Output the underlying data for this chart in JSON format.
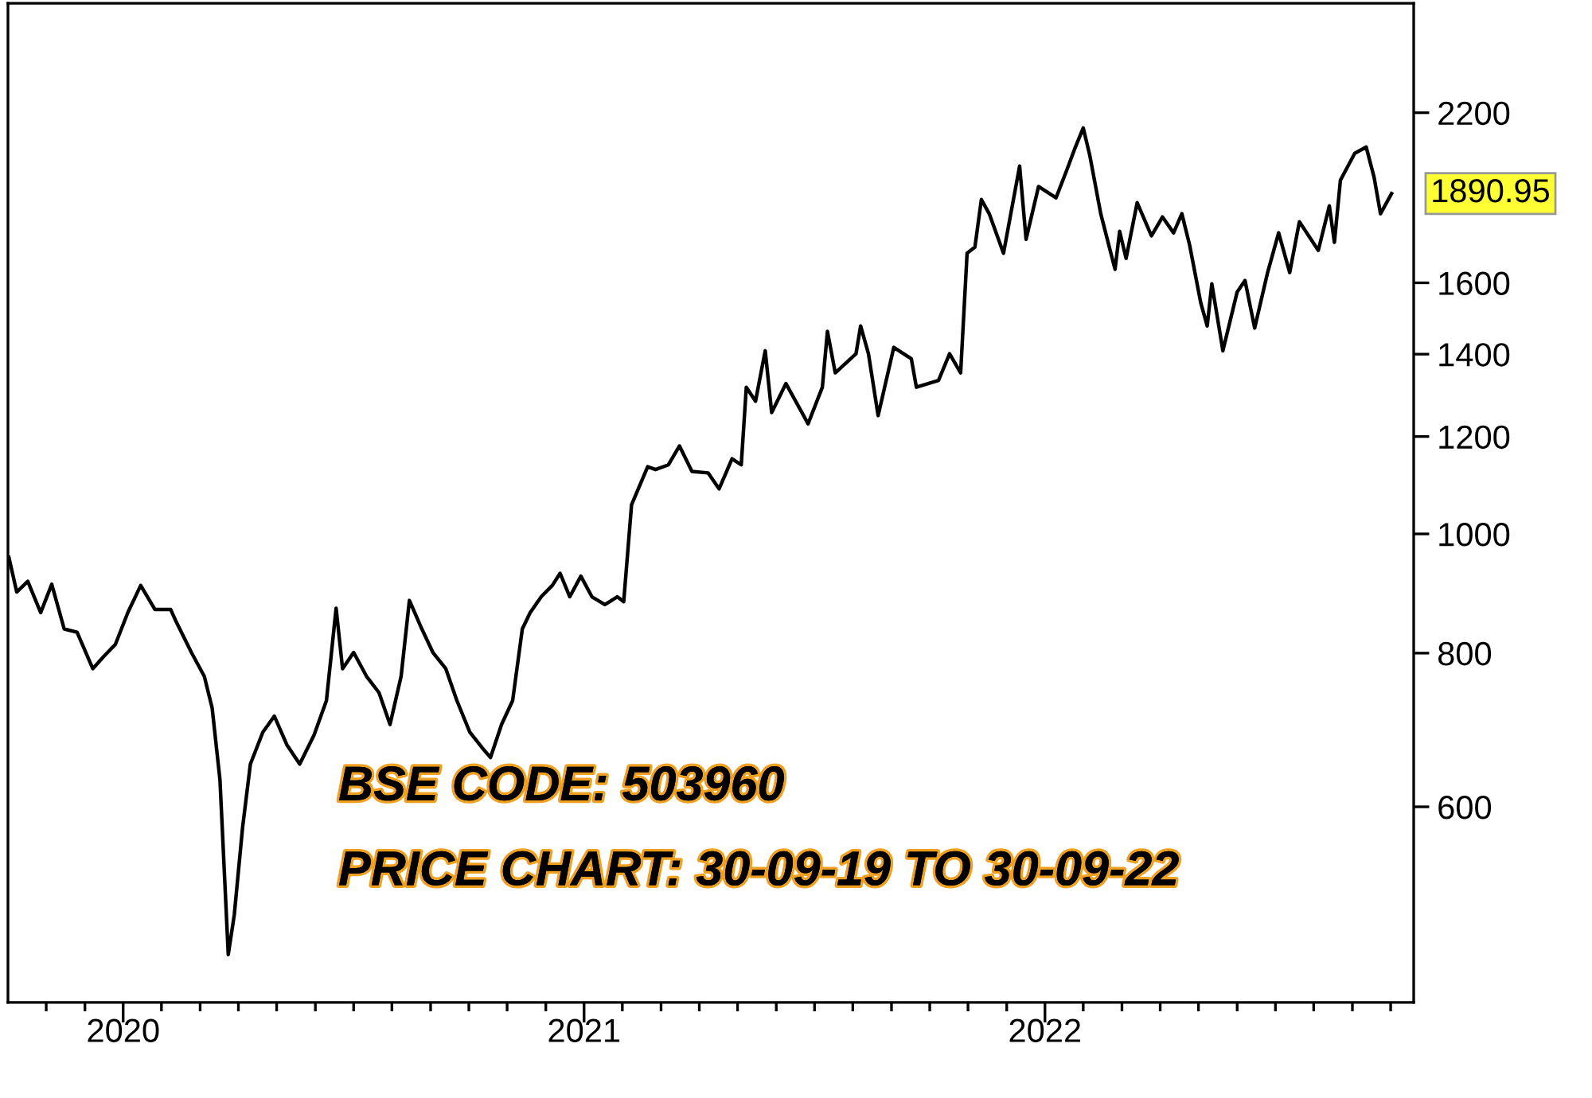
{
  "chart_data": {
    "type": "line",
    "log": "y",
    "x": [
      2019.752,
      2019.769,
      2019.793,
      2019.821,
      2019.845,
      2019.872,
      2019.9,
      2019.934,
      2019.959,
      2019.983,
      2020.01,
      2020.038,
      2020.069,
      2020.103,
      2020.114,
      2020.148,
      2020.176,
      2020.193,
      2020.21,
      2020.228,
      2020.241,
      2020.259,
      2020.276,
      2020.303,
      2020.328,
      2020.355,
      2020.383,
      2020.414,
      2020.441,
      2020.462,
      2020.476,
      2020.5,
      2020.528,
      2020.555,
      2020.579,
      2020.603,
      2020.621,
      2020.648,
      2020.672,
      2020.7,
      2020.724,
      2020.752,
      2020.779,
      2020.797,
      2020.821,
      2020.845,
      2020.866,
      2020.883,
      2020.907,
      2020.931,
      2020.948,
      2020.969,
      2020.993,
      2021.017,
      2021.045,
      2021.072,
      2021.086,
      2021.103,
      2021.138,
      2021.155,
      2021.183,
      2021.207,
      2021.234,
      2021.269,
      2021.293,
      2021.321,
      2021.341,
      2021.352,
      2021.372,
      2021.393,
      2021.407,
      2021.438,
      2021.486,
      2021.517,
      2021.528,
      2021.545,
      2021.59,
      2021.6,
      2021.617,
      2021.638,
      2021.672,
      2021.71,
      2021.721,
      2021.769,
      2021.793,
      2021.817,
      2021.831,
      2021.848,
      2021.862,
      2021.879,
      2021.91,
      2021.945,
      2021.959,
      2021.986,
      2022.024,
      2022.048,
      2022.066,
      2022.083,
      2022.097,
      2022.121,
      2022.152,
      2022.162,
      2022.176,
      2022.2,
      2022.231,
      2022.255,
      2022.279,
      2022.297,
      2022.314,
      2022.338,
      2022.352,
      2022.362,
      2022.386,
      2022.417,
      2022.434,
      2022.455,
      2022.483,
      2022.507,
      2022.531,
      2022.552,
      2022.593,
      2022.617,
      2022.628,
      2022.641,
      2022.672,
      2022.697,
      2022.714,
      2022.728,
      2022.752
    ],
    "series": [
      {
        "color": "#000000",
        "values": [
          957,
          897,
          915,
          863,
          910,
          837,
          832,
          777,
          796,
          813,
          863,
          908,
          868,
          868,
          850,
          801,
          766,
          722,
          631,
          455,
          490,
          577,
          650,
          690,
          711,
          674,
          650,
          686,
          732,
          870,
          777,
          801,
          766,
          743,
          700,
          766,
          883,
          837,
          801,
          777,
          732,
          690,
          670,
          658,
          700,
          732,
          837,
          863,
          889,
          908,
          929,
          889,
          924,
          889,
          876,
          889,
          881,
          1056,
          1134,
          1128,
          1138,
          1179,
          1124,
          1121,
          1088,
          1151,
          1138,
          1316,
          1282,
          1409,
          1255,
          1325,
          1229,
          1316,
          1461,
          1352,
          1401,
          1476,
          1401,
          1248,
          1418,
          1388,
          1316,
          1333,
          1401,
          1352,
          1691,
          1711,
          1870,
          1821,
          1691,
          1991,
          1736,
          1916,
          1876,
          1979,
          2063,
          2138,
          2033,
          1821,
          1641,
          1762,
          1675,
          1859,
          1747,
          1810,
          1757,
          1821,
          1716,
          1541,
          1476,
          1597,
          1409,
          1573,
          1607,
          1470,
          1631,
          1757,
          1631,
          1794,
          1700,
          1848,
          1726,
          1939,
          2039,
          2063,
          1950,
          1821,
          1890.95
        ]
      }
    ],
    "xlim": [
      2019.75,
      2022.8
    ],
    "xticks": [
      {
        "value": 2019.833,
        "label": null
      },
      {
        "value": 2019.917,
        "label": null
      },
      {
        "value": 2020,
        "label": "2020"
      },
      {
        "value": 2020.083,
        "label": null
      },
      {
        "value": 2020.167,
        "label": null
      },
      {
        "value": 2020.25,
        "label": null
      },
      {
        "value": 2020.333,
        "label": null
      },
      {
        "value": 2020.417,
        "label": null
      },
      {
        "value": 2020.5,
        "label": null
      },
      {
        "value": 2020.583,
        "label": null
      },
      {
        "value": 2020.667,
        "label": null
      },
      {
        "value": 2020.75,
        "label": null
      },
      {
        "value": 2020.833,
        "label": null
      },
      {
        "value": 2020.917,
        "label": null
      },
      {
        "value": 2021,
        "label": "2021"
      },
      {
        "value": 2021.083,
        "label": null
      },
      {
        "value": 2021.167,
        "label": null
      },
      {
        "value": 2021.25,
        "label": null
      },
      {
        "value": 2021.333,
        "label": null
      },
      {
        "value": 2021.417,
        "label": null
      },
      {
        "value": 2021.5,
        "label": null
      },
      {
        "value": 2021.583,
        "label": null
      },
      {
        "value": 2021.667,
        "label": null
      },
      {
        "value": 2021.75,
        "label": null
      },
      {
        "value": 2021.833,
        "label": null
      },
      {
        "value": 2021.917,
        "label": null
      },
      {
        "value": 2022,
        "label": "2022"
      },
      {
        "value": 2022.083,
        "label": null
      },
      {
        "value": 2022.167,
        "label": null
      },
      {
        "value": 2022.25,
        "label": null
      },
      {
        "value": 2022.333,
        "label": null
      },
      {
        "value": 2022.417,
        "label": null
      },
      {
        "value": 2022.5,
        "label": null
      },
      {
        "value": 2022.583,
        "label": null
      },
      {
        "value": 2022.667,
        "label": null
      },
      {
        "value": 2022.75,
        "label": null
      }
    ],
    "ylim": [
      416,
      2700
    ],
    "yticks": [
      600,
      800,
      1000,
      1200,
      1400,
      1600,
      2200
    ],
    "grid": false,
    "marker": "none",
    "line_style": "solid",
    "annotations": [
      "1890.95",
      "BSE CODE: 503960",
      "PRICE CHART: 30-09-19 TO 30-09-22"
    ]
  }
}
